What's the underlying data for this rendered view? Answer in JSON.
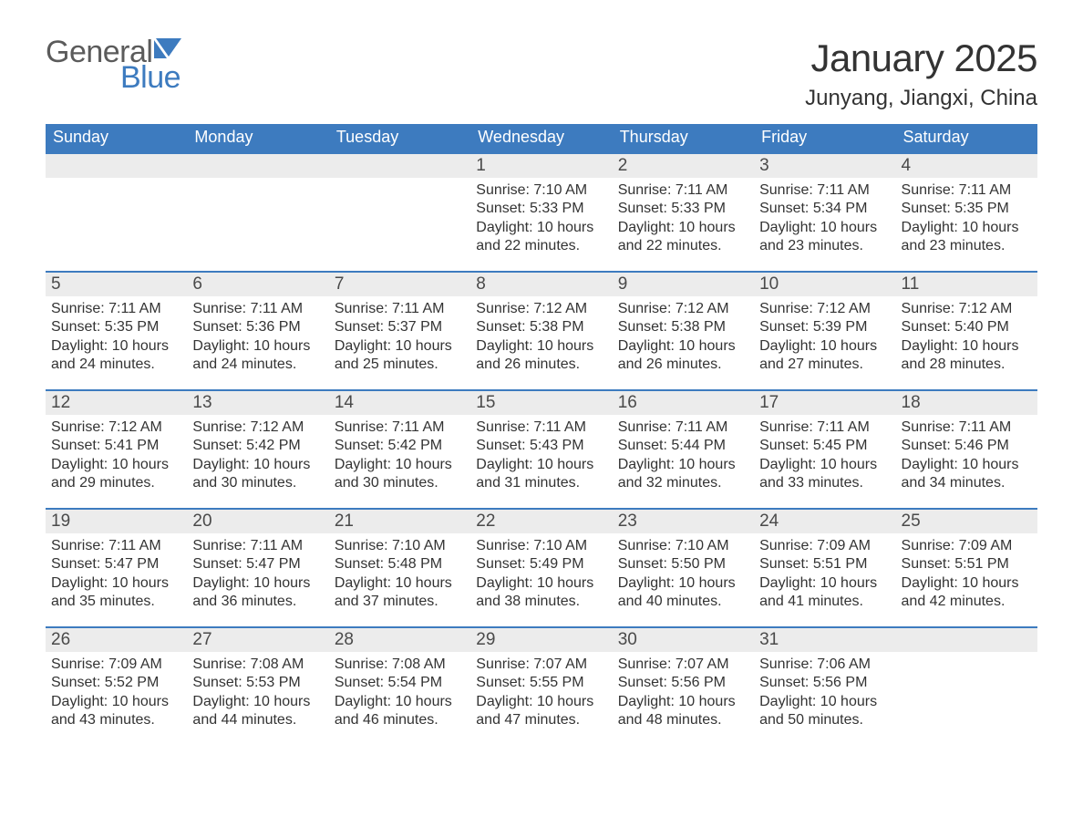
{
  "brand": {
    "word1": "General",
    "word2": "Blue"
  },
  "colors": {
    "brand_blue": "#3d7bbf",
    "header_blue": "#3d7bbf",
    "row_border": "#3d7bbf",
    "daynum_bg": "#ececec",
    "text": "#333333",
    "white": "#ffffff"
  },
  "fonts": {
    "title_size_pt": 42,
    "location_size_pt": 24,
    "weekday_size_pt": 18,
    "daynum_size_pt": 19,
    "body_size_pt": 16,
    "logo_size_pt": 34
  },
  "header": {
    "title": "January 2025",
    "location": "Junyang, Jiangxi, China"
  },
  "weekdays": [
    "Sunday",
    "Monday",
    "Tuesday",
    "Wednesday",
    "Thursday",
    "Friday",
    "Saturday"
  ],
  "labels": {
    "sunrise": "Sunrise",
    "sunset": "Sunset",
    "daylight": "Daylight"
  },
  "weeks": [
    [
      {
        "empty": true
      },
      {
        "empty": true
      },
      {
        "empty": true
      },
      {
        "day": "1",
        "sunrise": "7:10 AM",
        "sunset": "5:33 PM",
        "daylight": "10 hours and 22 minutes."
      },
      {
        "day": "2",
        "sunrise": "7:11 AM",
        "sunset": "5:33 PM",
        "daylight": "10 hours and 22 minutes."
      },
      {
        "day": "3",
        "sunrise": "7:11 AM",
        "sunset": "5:34 PM",
        "daylight": "10 hours and 23 minutes."
      },
      {
        "day": "4",
        "sunrise": "7:11 AM",
        "sunset": "5:35 PM",
        "daylight": "10 hours and 23 minutes."
      }
    ],
    [
      {
        "day": "5",
        "sunrise": "7:11 AM",
        "sunset": "5:35 PM",
        "daylight": "10 hours and 24 minutes."
      },
      {
        "day": "6",
        "sunrise": "7:11 AM",
        "sunset": "5:36 PM",
        "daylight": "10 hours and 24 minutes."
      },
      {
        "day": "7",
        "sunrise": "7:11 AM",
        "sunset": "5:37 PM",
        "daylight": "10 hours and 25 minutes."
      },
      {
        "day": "8",
        "sunrise": "7:12 AM",
        "sunset": "5:38 PM",
        "daylight": "10 hours and 26 minutes."
      },
      {
        "day": "9",
        "sunrise": "7:12 AM",
        "sunset": "5:38 PM",
        "daylight": "10 hours and 26 minutes."
      },
      {
        "day": "10",
        "sunrise": "7:12 AM",
        "sunset": "5:39 PM",
        "daylight": "10 hours and 27 minutes."
      },
      {
        "day": "11",
        "sunrise": "7:12 AM",
        "sunset": "5:40 PM",
        "daylight": "10 hours and 28 minutes."
      }
    ],
    [
      {
        "day": "12",
        "sunrise": "7:12 AM",
        "sunset": "5:41 PM",
        "daylight": "10 hours and 29 minutes."
      },
      {
        "day": "13",
        "sunrise": "7:12 AM",
        "sunset": "5:42 PM",
        "daylight": "10 hours and 30 minutes."
      },
      {
        "day": "14",
        "sunrise": "7:11 AM",
        "sunset": "5:42 PM",
        "daylight": "10 hours and 30 minutes."
      },
      {
        "day": "15",
        "sunrise": "7:11 AM",
        "sunset": "5:43 PM",
        "daylight": "10 hours and 31 minutes."
      },
      {
        "day": "16",
        "sunrise": "7:11 AM",
        "sunset": "5:44 PM",
        "daylight": "10 hours and 32 minutes."
      },
      {
        "day": "17",
        "sunrise": "7:11 AM",
        "sunset": "5:45 PM",
        "daylight": "10 hours and 33 minutes."
      },
      {
        "day": "18",
        "sunrise": "7:11 AM",
        "sunset": "5:46 PM",
        "daylight": "10 hours and 34 minutes."
      }
    ],
    [
      {
        "day": "19",
        "sunrise": "7:11 AM",
        "sunset": "5:47 PM",
        "daylight": "10 hours and 35 minutes."
      },
      {
        "day": "20",
        "sunrise": "7:11 AM",
        "sunset": "5:47 PM",
        "daylight": "10 hours and 36 minutes."
      },
      {
        "day": "21",
        "sunrise": "7:10 AM",
        "sunset": "5:48 PM",
        "daylight": "10 hours and 37 minutes."
      },
      {
        "day": "22",
        "sunrise": "7:10 AM",
        "sunset": "5:49 PM",
        "daylight": "10 hours and 38 minutes."
      },
      {
        "day": "23",
        "sunrise": "7:10 AM",
        "sunset": "5:50 PM",
        "daylight": "10 hours and 40 minutes."
      },
      {
        "day": "24",
        "sunrise": "7:09 AM",
        "sunset": "5:51 PM",
        "daylight": "10 hours and 41 minutes."
      },
      {
        "day": "25",
        "sunrise": "7:09 AM",
        "sunset": "5:51 PM",
        "daylight": "10 hours and 42 minutes."
      }
    ],
    [
      {
        "day": "26",
        "sunrise": "7:09 AM",
        "sunset": "5:52 PM",
        "daylight": "10 hours and 43 minutes."
      },
      {
        "day": "27",
        "sunrise": "7:08 AM",
        "sunset": "5:53 PM",
        "daylight": "10 hours and 44 minutes."
      },
      {
        "day": "28",
        "sunrise": "7:08 AM",
        "sunset": "5:54 PM",
        "daylight": "10 hours and 46 minutes."
      },
      {
        "day": "29",
        "sunrise": "7:07 AM",
        "sunset": "5:55 PM",
        "daylight": "10 hours and 47 minutes."
      },
      {
        "day": "30",
        "sunrise": "7:07 AM",
        "sunset": "5:56 PM",
        "daylight": "10 hours and 48 minutes."
      },
      {
        "day": "31",
        "sunrise": "7:06 AM",
        "sunset": "5:56 PM",
        "daylight": "10 hours and 50 minutes."
      },
      {
        "empty": true
      }
    ]
  ]
}
